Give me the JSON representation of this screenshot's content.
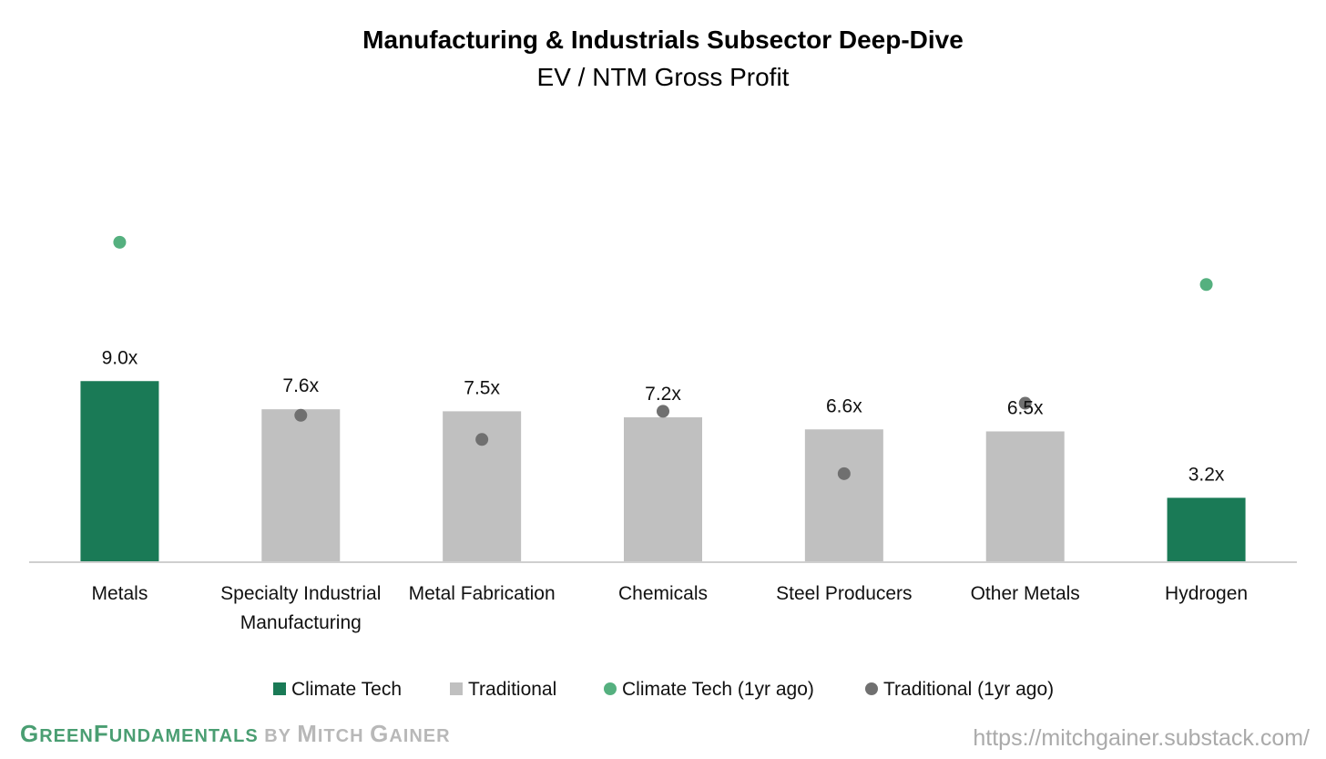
{
  "colors": {
    "climate_tech": "#1a7a56",
    "traditional": "#c0c0c0",
    "climate_tech_1yr": "#55b07f",
    "traditional_1yr": "#707070",
    "axis": "#cfcfcf"
  },
  "chart_data": {
    "type": "bar",
    "title": "Manufacturing & Industrials Subsector Deep-Dive",
    "subtitle": "EV / NTM Gross Profit",
    "categories": [
      [
        "Metals"
      ],
      [
        "Specialty Industrial",
        "Manufacturing"
      ],
      [
        "Metal Fabrication"
      ],
      [
        "Chemicals"
      ],
      [
        "Steel Producers"
      ],
      [
        "Other Metals"
      ],
      [
        "Hydrogen"
      ]
    ],
    "values": [
      9.0,
      7.6,
      7.5,
      7.2,
      6.6,
      6.5,
      3.2
    ],
    "value_labels": [
      "9.0x",
      "7.6x",
      "7.5x",
      "7.2x",
      "6.6x",
      "6.5x",
      "3.2x"
    ],
    "bar_series": [
      "Climate Tech",
      "Traditional",
      "Traditional",
      "Traditional",
      "Traditional",
      "Traditional",
      "Climate Tech"
    ],
    "one_year_ago": [
      {
        "series": "Climate Tech (1yr ago)",
        "value": 15.9
      },
      {
        "series": "Traditional (1yr ago)",
        "value": 7.3
      },
      {
        "series": "Traditional (1yr ago)",
        "value": 6.1
      },
      {
        "series": "Traditional (1yr ago)",
        "value": 7.5
      },
      {
        "series": "Traditional (1yr ago)",
        "value": 4.4
      },
      {
        "series": "Traditional (1yr ago)",
        "value": 7.9
      },
      {
        "series": "Climate Tech (1yr ago)",
        "value": 13.8
      }
    ],
    "ylim": [
      0,
      21.6
    ],
    "grid": false,
    "legend_position": "bottom",
    "legend": [
      {
        "label": "Climate Tech",
        "marker": "square",
        "color_key": "climate_tech"
      },
      {
        "label": "Traditional",
        "marker": "square",
        "color_key": "traditional"
      },
      {
        "label": "Climate Tech (1yr ago)",
        "marker": "circle",
        "color_key": "climate_tech_1yr"
      },
      {
        "label": "Traditional (1yr ago)",
        "marker": "circle",
        "color_key": "traditional_1yr"
      }
    ]
  },
  "footer": {
    "brand_green_1": "G",
    "brand_green_2": "REEN",
    "brand_green_3": "F",
    "brand_green_4": "UNDAMENTALS",
    "brand_by": " BY ",
    "brand_gray_1": "M",
    "brand_gray_2": "ITCH ",
    "brand_gray_3": "G",
    "brand_gray_4": "AINER",
    "url": "https://mitchgainer.substack.com/"
  }
}
